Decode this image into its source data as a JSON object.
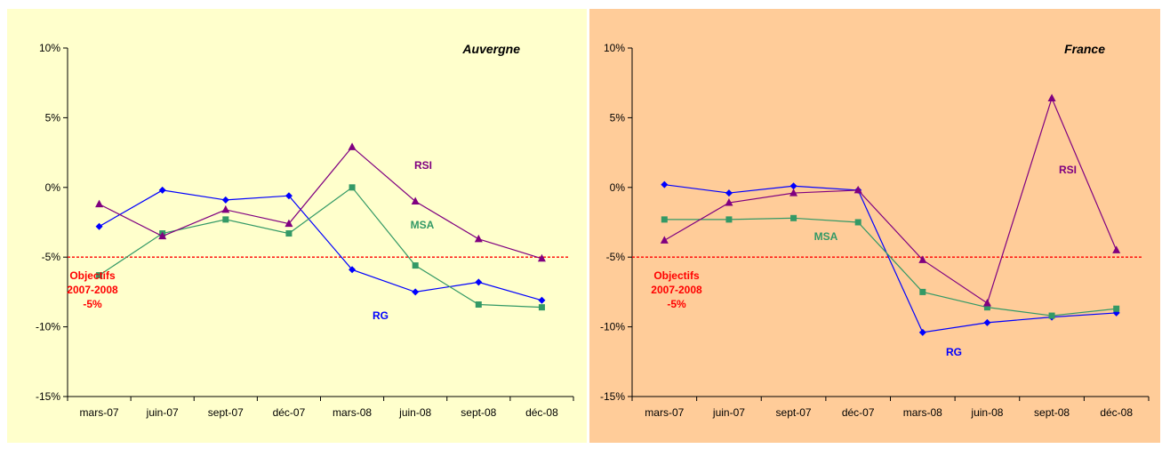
{
  "colors": {
    "rg": "#0000ff",
    "msa": "#339966",
    "rsi": "#800080",
    "objective": "#ff0000",
    "bg_auvergne": "#ffffcc",
    "bg_france": "#ffcc99"
  },
  "chart_data": [
    {
      "type": "line",
      "title": "Auvergne",
      "categories": [
        "mars-07",
        "juin-07",
        "sept-07",
        "déc-07",
        "mars-08",
        "juin-08",
        "sept-08",
        "déc-08"
      ],
      "yticks": [
        "10%",
        "5%",
        "0%",
        "-5%",
        "-10%",
        "-15%"
      ],
      "ylim": [
        -15,
        10
      ],
      "grid": false,
      "series": [
        {
          "name": "RG",
          "marker": "diamond",
          "values": [
            -2.8,
            -0.2,
            -0.9,
            -0.6,
            -5.9,
            -7.5,
            -6.8,
            -8.1
          ]
        },
        {
          "name": "MSA",
          "marker": "square",
          "values": [
            -6.3,
            -3.3,
            -2.3,
            -3.3,
            0.0,
            -5.6,
            -8.4,
            -8.6
          ]
        },
        {
          "name": "RSI",
          "marker": "triangle",
          "values": [
            -1.2,
            -3.5,
            -1.6,
            -2.6,
            2.9,
            -1.0,
            -3.7,
            -5.1
          ]
        }
      ],
      "objective": {
        "value": -5,
        "label_lines": [
          "Objectifs",
          "2007-2008",
          "-5%"
        ]
      },
      "annotations": {
        "RG": "RG",
        "MSA": "MSA",
        "RSI": "RSI"
      }
    },
    {
      "type": "line",
      "title": "France",
      "categories": [
        "mars-07",
        "juin-07",
        "sept-07",
        "déc-07",
        "mars-08",
        "juin-08",
        "sept-08",
        "déc-08"
      ],
      "yticks": [
        "10%",
        "5%",
        "0%",
        "-5%",
        "-10%",
        "-15%"
      ],
      "ylim": [
        -15,
        10
      ],
      "grid": false,
      "series": [
        {
          "name": "RG",
          "marker": "diamond",
          "values": [
            0.2,
            -0.4,
            0.1,
            -0.2,
            -10.4,
            -9.7,
            -9.3,
            -9.0
          ]
        },
        {
          "name": "MSA",
          "marker": "square",
          "values": [
            -2.3,
            -2.3,
            -2.2,
            -2.5,
            -7.5,
            -8.6,
            -9.2,
            -8.7
          ]
        },
        {
          "name": "RSI",
          "marker": "triangle",
          "values": [
            -3.8,
            -1.1,
            -0.4,
            -0.2,
            -5.2,
            -8.3,
            6.4,
            -4.5
          ]
        }
      ],
      "objective": {
        "value": -5,
        "label_lines": [
          "Objectifs",
          "2007-2008",
          "-5%"
        ]
      },
      "annotations": {
        "RG": "RG",
        "MSA": "MSA",
        "RSI": "RSI"
      }
    }
  ]
}
